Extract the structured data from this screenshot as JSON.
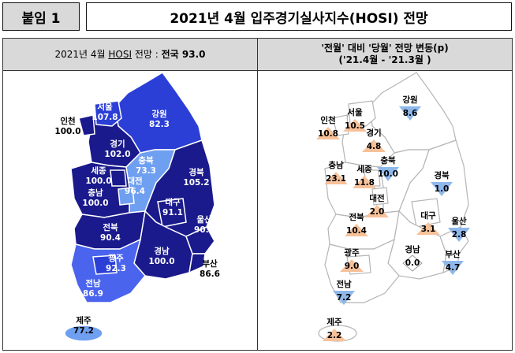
{
  "title": {
    "tag": "붙임 1",
    "text": "2021년 4월 입주경기실사지수(HOSI) 전망"
  },
  "left_header": {
    "prefix": "2021년 4월 ",
    "hosi": "HOSI",
    "suffix": " 전망 : ",
    "national": "전국 93.0"
  },
  "right_header": {
    "line1": "'전월' 대비 '당월' 전망 변동(p)",
    "line2": "('21.4월 - '21.3월 )"
  },
  "colors": {
    "dark_navy": "#1a1a8c",
    "blue": "#2b3fd6",
    "mid_blue": "#4a64ee",
    "light_blue": "#6f9ff0",
    "up_orange": "#f7c199",
    "down_blue": "#8fb8ea",
    "neutral": "#ffffff",
    "border": "#ffffff"
  },
  "regions": [
    {
      "key": "seoul",
      "name": "서울",
      "hosi": "107.8",
      "change": "10.5",
      "dir": "up"
    },
    {
      "key": "incheon",
      "name": "인천",
      "hosi": "100.0",
      "change": "10.8",
      "dir": "up"
    },
    {
      "key": "gyeonggi",
      "name": "경기",
      "hosi": "102.0",
      "change": "4.8",
      "dir": "up"
    },
    {
      "key": "gangwon",
      "name": "강원",
      "hosi": "82.3",
      "change": "8.6",
      "dir": "down"
    },
    {
      "key": "chungbuk",
      "name": "충북",
      "hosi": "73.3",
      "change": "10.0",
      "dir": "down"
    },
    {
      "key": "sejong",
      "name": "세종",
      "hosi": "100.0",
      "change": "11.8",
      "dir": "up"
    },
    {
      "key": "chungnam",
      "name": "충남",
      "hosi": "100.0",
      "change": "23.1",
      "dir": "up"
    },
    {
      "key": "daejeon",
      "name": "대전",
      "hosi": "96.4",
      "change": "2.0",
      "dir": "up"
    },
    {
      "key": "gyeongbuk",
      "name": "경북",
      "hosi": "105.2",
      "change": "1.0",
      "dir": "down"
    },
    {
      "key": "daegu",
      "name": "대구",
      "hosi": "91.1",
      "change": "3.1",
      "dir": "up"
    },
    {
      "key": "ulsan",
      "name": "울산",
      "hosi": "90.0",
      "change": "2.8",
      "dir": "down"
    },
    {
      "key": "jeonbuk",
      "name": "전북",
      "hosi": "90.4",
      "change": "10.4",
      "dir": "up"
    },
    {
      "key": "gwangju",
      "name": "광주",
      "hosi": "92.3",
      "change": "9.0",
      "dir": "up"
    },
    {
      "key": "gyeongnam",
      "name": "경남",
      "hosi": "100.0",
      "change": "0.0",
      "dir": "flat"
    },
    {
      "key": "busan",
      "name": "부산",
      "hosi": "86.6",
      "change": "4.7",
      "dir": "down"
    },
    {
      "key": "jeonnam",
      "name": "전남",
      "hosi": "86.9",
      "change": "7.2",
      "dir": "down"
    },
    {
      "key": "jeju",
      "name": "제주",
      "hosi": "77.2",
      "change": "2.2",
      "dir": "up"
    }
  ]
}
